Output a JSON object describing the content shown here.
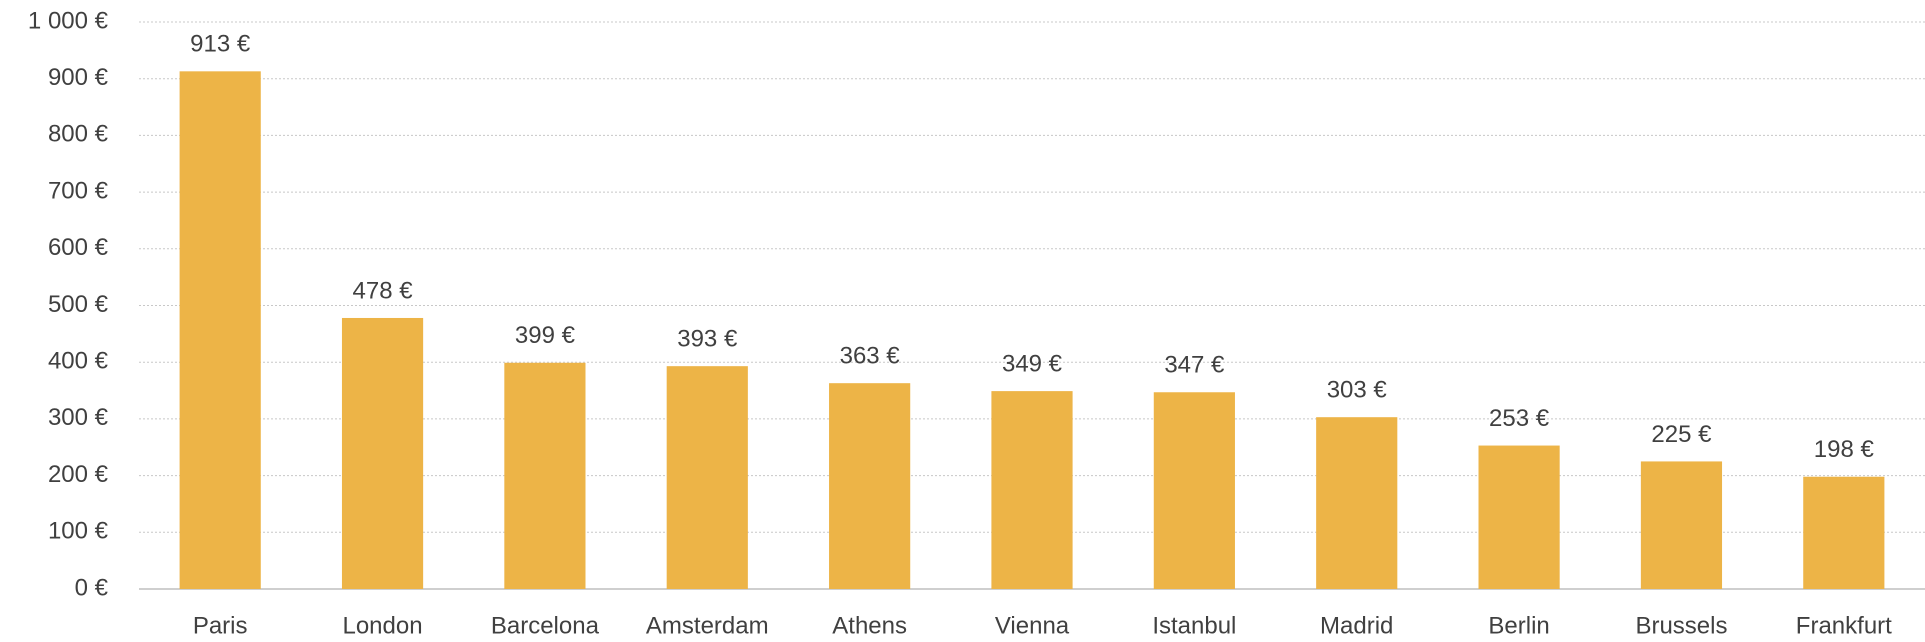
{
  "chart_data": {
    "type": "bar",
    "categories": [
      "Paris",
      "London",
      "Barcelona",
      "Amsterdam",
      "Athens",
      "Vienna",
      "Istanbul",
      "Madrid",
      "Berlin",
      "Brussels",
      "Frankfurt"
    ],
    "values": [
      913,
      478,
      399,
      393,
      363,
      349,
      347,
      303,
      253,
      225,
      198
    ],
    "value_labels": [
      "913 €",
      "478 €",
      "399 €",
      "393 €",
      "363 €",
      "349 €",
      "347 €",
      "303 €",
      "253 €",
      "225 €",
      "198 €"
    ],
    "color": "#edb447",
    "ylim": [
      0,
      1000
    ],
    "yticks": [
      {
        "value": 0,
        "label": "0 €"
      },
      {
        "value": 100,
        "label": "100 €"
      },
      {
        "value": 200,
        "label": "200 €"
      },
      {
        "value": 300,
        "label": "300 €"
      },
      {
        "value": 400,
        "label": "400 €"
      },
      {
        "value": 500,
        "label": "500 €"
      },
      {
        "value": 600,
        "label": "600 €"
      },
      {
        "value": 700,
        "label": "700 €"
      },
      {
        "value": 800,
        "label": "800 €"
      },
      {
        "value": 900,
        "label": "900 €"
      },
      {
        "value": 1000,
        "label": "1 000 €"
      }
    ],
    "grid": true
  }
}
